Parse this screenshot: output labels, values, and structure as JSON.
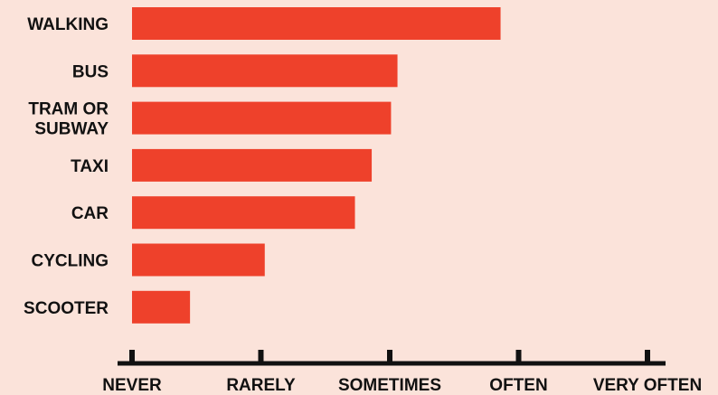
{
  "colors": {
    "background": "#fbe3da",
    "bar": "#ee412b",
    "axis": "#111111",
    "text": "#111111"
  },
  "chart_data": {
    "type": "bar",
    "orientation": "horizontal",
    "title": "",
    "xlabel": "",
    "ylabel": "",
    "categories": [
      [
        "WALKING"
      ],
      [
        "BUS"
      ],
      [
        "TRAM OR",
        "SUBWAY"
      ],
      [
        "TAXI"
      ],
      [
        "CAR"
      ],
      [
        "CYCLING"
      ],
      [
        "SCOOTER"
      ]
    ],
    "values": [
      2.86,
      2.06,
      2.01,
      1.86,
      1.73,
      1.03,
      0.45
    ],
    "x_ticks": [
      0,
      1,
      2,
      3,
      4
    ],
    "x_tick_labels": [
      "NEVER",
      "RARELY",
      "SOMETIMES",
      "OFTEN",
      "VERY OFTEN"
    ],
    "xlim": [
      0,
      4
    ],
    "grid": false,
    "legend": "none"
  }
}
